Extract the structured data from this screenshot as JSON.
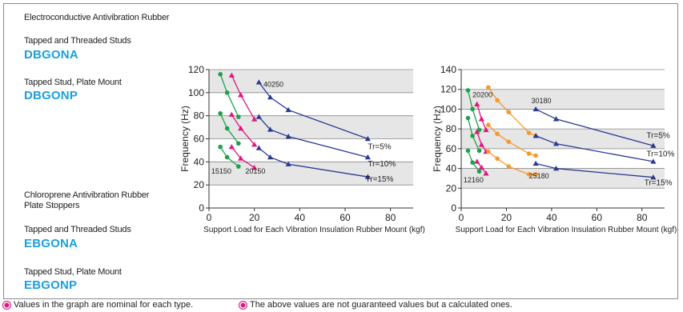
{
  "heading": "Electroconductive Antivibration Rubber",
  "sections": [
    {
      "caption": "Tapped and Threaded Studs",
      "code": "DBGONA"
    },
    {
      "caption": "Tapped Stud, Plate Mount",
      "code": "DBGONP"
    },
    {
      "caption": "Chloroprene Antivibration Rubber",
      "caption2": "Plate Stoppers"
    },
    {
      "caption": "Tapped and Threaded Studs",
      "code": "EBGONA"
    },
    {
      "caption": "Tapped Stud, Plate Mount",
      "code": "EBGONP"
    }
  ],
  "notes": [
    "Values in the graph are nominal for each type.",
    "The above values are not guaranteed values but a calculated ones."
  ],
  "colors": {
    "green": "#1aa34a",
    "magenta": "#e0177e",
    "orange": "#f29a2e",
    "navy": "#2b3990",
    "grid": "#8a8a8a",
    "band": "#e6e6e6"
  },
  "chart_data": [
    {
      "type": "line",
      "xlabel": "Support Load for Each Vibration Insulation Rubber Mount (kgf)",
      "ylabel": "Frequency (Hz)",
      "xlim": [
        0,
        90
      ],
      "ylim": [
        0,
        120
      ],
      "xticks": [
        0,
        20,
        40,
        60,
        80
      ],
      "yticks": [
        0,
        20,
        40,
        60,
        80,
        100,
        120
      ],
      "series": [
        {
          "color": "green",
          "marker": "circle",
          "x": [
            5,
            8,
            13
          ],
          "y": [
            116,
            100,
            79
          ]
        },
        {
          "color": "green",
          "marker": "circle",
          "x": [
            5,
            8,
            13
          ],
          "y": [
            82,
            69,
            56
          ]
        },
        {
          "color": "green",
          "marker": "circle",
          "x": [
            5,
            8,
            13
          ],
          "y": [
            53,
            44,
            36
          ]
        },
        {
          "color": "magenta",
          "marker": "triangle",
          "x": [
            10,
            14,
            20
          ],
          "y": [
            115,
            98,
            77
          ]
        },
        {
          "color": "magenta",
          "marker": "triangle",
          "x": [
            10,
            14,
            20
          ],
          "y": [
            81,
            69,
            55
          ]
        },
        {
          "color": "magenta",
          "marker": "triangle",
          "x": [
            10,
            14,
            20
          ],
          "y": [
            53,
            43,
            35
          ]
        },
        {
          "color": "navy",
          "marker": "triangle",
          "x": [
            22,
            27,
            35,
            70
          ],
          "y": [
            109,
            96,
            85,
            60
          ]
        },
        {
          "color": "navy",
          "marker": "triangle",
          "x": [
            22,
            27,
            35,
            70
          ],
          "y": [
            79,
            68,
            62,
            44
          ]
        },
        {
          "color": "navy",
          "marker": "triangle",
          "x": [
            22,
            27,
            35,
            70
          ],
          "y": [
            52,
            44,
            38,
            27
          ]
        }
      ],
      "labels": [
        {
          "text": "40250",
          "x": 24,
          "y": 105
        },
        {
          "text": "15150",
          "x": 1,
          "y": 30
        },
        {
          "text": "20150",
          "x": 16,
          "y": 30
        },
        {
          "text": "Tr=5%",
          "x": 70,
          "y": 51
        },
        {
          "text": "Tr=10%",
          "x": 70,
          "y": 36
        },
        {
          "text": "Tr=15%",
          "x": 69,
          "y": 23
        }
      ]
    },
    {
      "type": "line",
      "xlabel": "Support Load for Each Vibration Insulation Rubber Mount (kgf)",
      "ylabel": "Frequency (Hz)",
      "xlim": [
        0,
        90
      ],
      "ylim": [
        0,
        140
      ],
      "xticks": [
        0,
        20,
        40,
        60,
        80
      ],
      "yticks": [
        0,
        20,
        40,
        60,
        80,
        100,
        120,
        140
      ],
      "series": [
        {
          "color": "green",
          "marker": "circle",
          "x": [
            3,
            5,
            8
          ],
          "y": [
            119,
            100,
            79
          ]
        },
        {
          "color": "green",
          "marker": "circle",
          "x": [
            3,
            5,
            8
          ],
          "y": [
            91,
            73,
            58
          ]
        },
        {
          "color": "green",
          "marker": "circle",
          "x": [
            3,
            5,
            8
          ],
          "y": [
            58,
            46,
            37
          ]
        },
        {
          "color": "magenta",
          "marker": "triangle",
          "x": [
            7,
            9,
            11
          ],
          "y": [
            105,
            90,
            79
          ]
        },
        {
          "color": "magenta",
          "marker": "triangle",
          "x": [
            7,
            9,
            11
          ],
          "y": [
            77,
            64,
            57
          ]
        },
        {
          "color": "magenta",
          "marker": "triangle",
          "x": [
            7,
            9,
            11
          ],
          "y": [
            47,
            41,
            35
          ]
        },
        {
          "color": "orange",
          "marker": "circle",
          "x": [
            12,
            16,
            21,
            30,
            33
          ],
          "y": [
            122,
            109,
            97,
            76,
            73
          ]
        },
        {
          "color": "orange",
          "marker": "circle",
          "x": [
            12,
            16,
            21,
            30,
            33
          ],
          "y": [
            84,
            75,
            67,
            55,
            53
          ]
        },
        {
          "color": "orange",
          "marker": "circle",
          "x": [
            12,
            16,
            21,
            30,
            33
          ],
          "y": [
            57,
            50,
            42,
            34,
            34
          ]
        },
        {
          "color": "navy",
          "marker": "triangle",
          "x": [
            33,
            42,
            85
          ],
          "y": [
            100,
            90,
            63
          ]
        },
        {
          "color": "navy",
          "marker": "triangle",
          "x": [
            33,
            42,
            85
          ],
          "y": [
            73,
            65,
            47
          ]
        },
        {
          "color": "navy",
          "marker": "triangle",
          "x": [
            33,
            42,
            85
          ],
          "y": [
            45,
            40,
            31
          ]
        }
      ],
      "labels": [
        {
          "text": "20200",
          "x": 5,
          "y": 112
        },
        {
          "text": "30180",
          "x": 31,
          "y": 106
        },
        {
          "text": "12160",
          "x": 1,
          "y": 26
        },
        {
          "text": "25180",
          "x": 30,
          "y": 30
        },
        {
          "text": "Tr=5%",
          "x": 82,
          "y": 71
        },
        {
          "text": "Tr=10%",
          "x": 82,
          "y": 52
        },
        {
          "text": "Tr=15%",
          "x": 81,
          "y": 23
        }
      ]
    }
  ]
}
